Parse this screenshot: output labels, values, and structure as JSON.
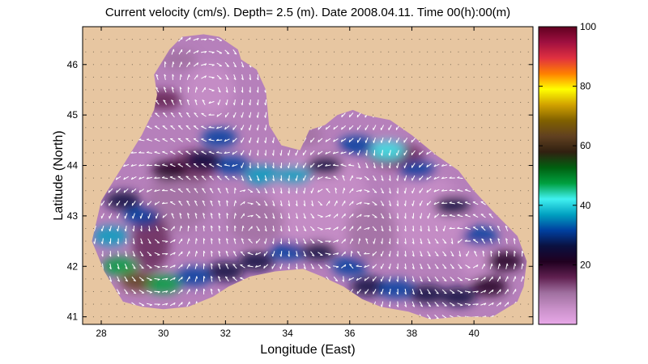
{
  "chart_data": {
    "type": "heatmap",
    "title": "Current velocity (cm/s). Depth=  2.5 (m). Date 2008.04.11. Time 00(h):00(m)",
    "xlabel": "Longitude (East)",
    "ylabel": "Latitude (North)",
    "xlim": [
      27.4,
      41.9
    ],
    "ylim": [
      40.85,
      46.75
    ],
    "x_ticks": [
      "28",
      "30",
      "32",
      "34",
      "36",
      "38",
      "40"
    ],
    "y_ticks": [
      "41",
      "42",
      "43",
      "44",
      "45",
      "46"
    ],
    "grid": true,
    "colorbar": {
      "ticks": [
        "20",
        "40",
        "60",
        "80",
        "100"
      ],
      "range": [
        0,
        100
      ],
      "colors": [
        "#e8a8e8",
        "#c890c8",
        "#a070a0",
        "#602050",
        "#200020",
        "#0a1040",
        "#0040a0",
        "#00a0c0",
        "#40f0f0",
        "#00a040",
        "#006010",
        "#302010",
        "#604020",
        "#806000",
        "#d0a000",
        "#ffff00",
        "#ff8000",
        "#e03040",
        "#a01040",
        "#600020"
      ]
    },
    "colors": {
      "land": "#e7c6a1",
      "sea_background": "#b680bb",
      "sea_light": "#d1a0d8",
      "arrows": "#ffffff"
    },
    "coastline": [
      [
        27.7,
        42.5
      ],
      [
        28.0,
        43.3
      ],
      [
        28.5,
        43.8
      ],
      [
        29.3,
        44.6
      ],
      [
        29.7,
        45.1
      ],
      [
        29.8,
        45.4
      ],
      [
        29.7,
        45.8
      ],
      [
        30.2,
        46.3
      ],
      [
        30.6,
        46.55
      ],
      [
        31.3,
        46.6
      ],
      [
        31.8,
        46.55
      ],
      [
        32.4,
        46.3
      ],
      [
        32.5,
        46.1
      ],
      [
        33.0,
        45.9
      ],
      [
        33.3,
        45.5
      ],
      [
        33.4,
        44.8
      ],
      [
        33.8,
        44.4
      ],
      [
        34.4,
        44.3
      ],
      [
        34.7,
        44.7
      ],
      [
        35.2,
        44.8
      ],
      [
        35.6,
        45.0
      ],
      [
        36.1,
        45.1
      ],
      [
        36.5,
        45.0
      ],
      [
        37.3,
        44.9
      ],
      [
        38.0,
        44.6
      ],
      [
        38.8,
        44.2
      ],
      [
        39.5,
        43.9
      ],
      [
        40.0,
        43.5
      ],
      [
        40.6,
        43.1
      ],
      [
        41.4,
        42.6
      ],
      [
        41.7,
        42.1
      ],
      [
        41.6,
        41.6
      ],
      [
        41.4,
        41.3
      ],
      [
        40.6,
        41.0
      ],
      [
        40.0,
        41.0
      ],
      [
        39.5,
        41.0
      ],
      [
        38.6,
        40.95
      ],
      [
        37.9,
        41.1
      ],
      [
        37.0,
        41.2
      ],
      [
        36.4,
        41.35
      ],
      [
        35.8,
        41.6
      ],
      [
        35.1,
        41.8
      ],
      [
        34.5,
        41.95
      ],
      [
        33.6,
        41.9
      ],
      [
        32.8,
        41.8
      ],
      [
        32.1,
        41.6
      ],
      [
        31.6,
        41.4
      ],
      [
        30.8,
        41.2
      ],
      [
        30.0,
        41.15
      ],
      [
        29.3,
        41.2
      ],
      [
        28.7,
        41.3
      ],
      [
        28.1,
        41.9
      ],
      [
        27.7,
        42.5
      ]
    ]
  }
}
